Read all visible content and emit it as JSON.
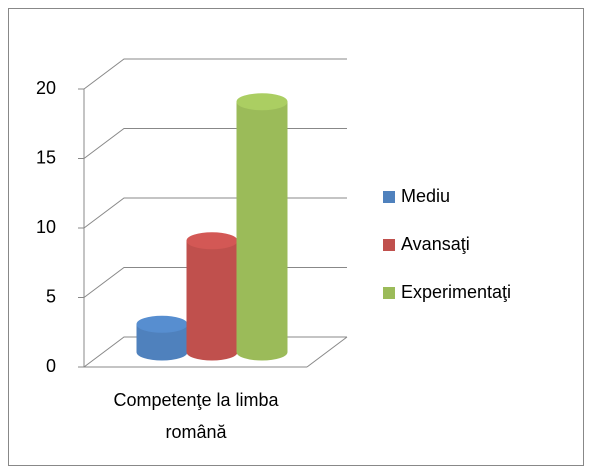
{
  "chart_data": {
    "type": "bar3d",
    "categories": [
      "Competenţe la limba română"
    ],
    "series": [
      {
        "name": "Mediu",
        "color": "#4f81bd",
        "values": [
          2
        ]
      },
      {
        "name": "Avansaţi",
        "color": "#c0504d",
        "values": [
          8
        ]
      },
      {
        "name": "Experimentaţi",
        "color": "#9bbb59",
        "values": [
          18
        ]
      }
    ],
    "ylim": [
      0,
      20
    ],
    "yticks": [
      0,
      5,
      10,
      15,
      20
    ],
    "grid": true,
    "legend": "right"
  }
}
